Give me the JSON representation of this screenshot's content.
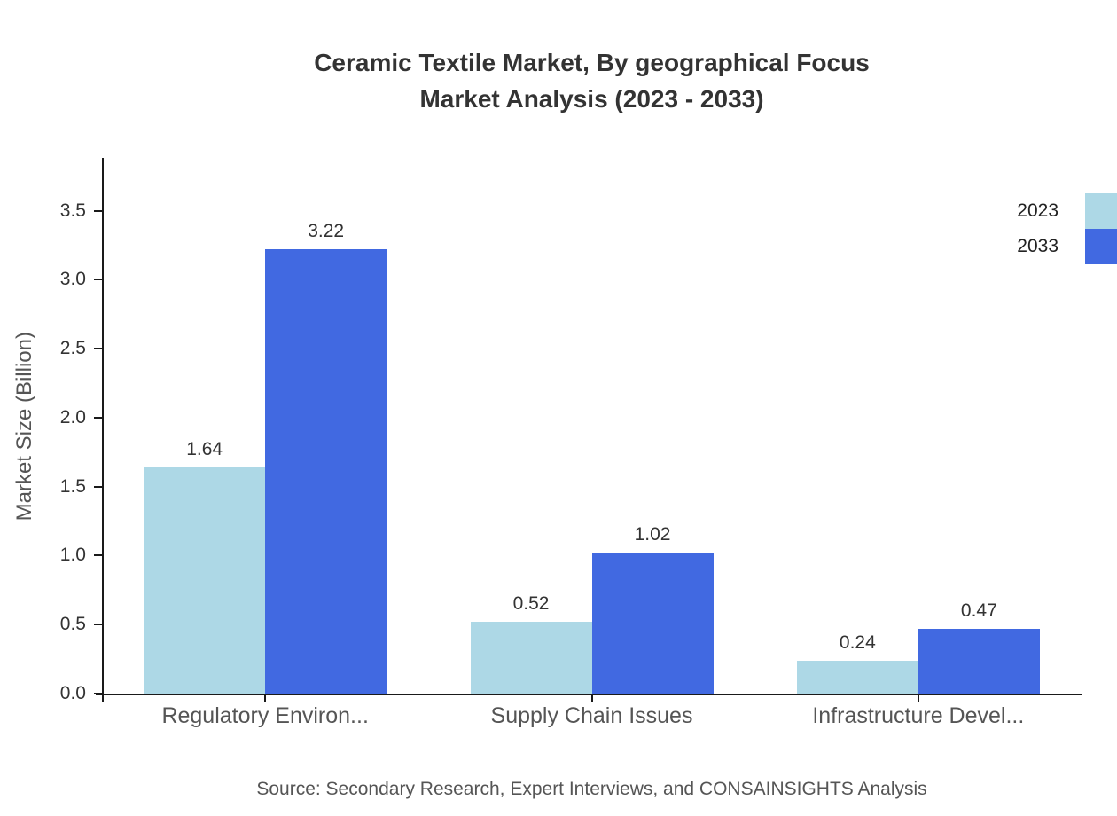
{
  "title": {
    "line1": "Ceramic Textile Market, By geographical Focus",
    "line2": "Market Analysis (2023 - 2033)"
  },
  "legend": {
    "items": [
      {
        "label": "2023",
        "color": "#ADD8E6"
      },
      {
        "label": "2033",
        "color": "#4169E1"
      }
    ]
  },
  "y_axis": {
    "title": "Market Size (Billion)"
  },
  "source": "Source: Secondary Research, Expert Interviews, and CONSAINSIGHTS Analysis",
  "chart_data": {
    "type": "bar",
    "categories": [
      "Regulatory Environ...",
      "Supply Chain Issues",
      "Infrastructure Devel..."
    ],
    "series": [
      {
        "name": "2023",
        "color": "#ADD8E6",
        "values": [
          1.64,
          0.52,
          0.24
        ]
      },
      {
        "name": "2033",
        "color": "#4169E1",
        "values": [
          3.22,
          1.02,
          0.47
        ]
      }
    ],
    "title": "Ceramic Textile Market, By geographical Focus Market Analysis (2023 - 2033)",
    "xlabel": "",
    "ylabel": "Market Size (Billion)",
    "ylim": [
      0,
      3.87
    ],
    "yticks": [
      0,
      0.5,
      1,
      1.5,
      2,
      2.5,
      3,
      3.5
    ],
    "grid": false,
    "legend_position": "top-right",
    "bar_value_labels": true
  }
}
